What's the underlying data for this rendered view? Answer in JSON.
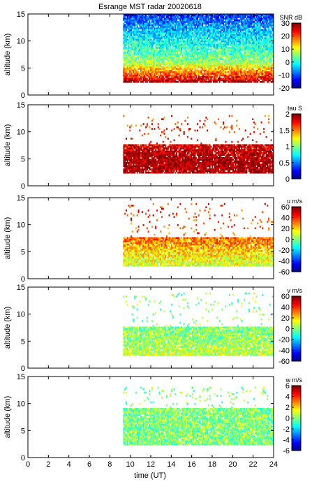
{
  "title": "Esrange MST radar 20020618",
  "xlabel": "time (UT)",
  "ylabel": "altitude (km)",
  "chart_data": [
    {
      "type": "heatmap",
      "title": "Esrange MST radar 20020618",
      "quantity": "SNR",
      "cbar_label": "SNR dB",
      "ylabel": "altitude (km)",
      "xlim": [
        0,
        24
      ],
      "ylim": [
        0,
        15
      ],
      "xticks": [
        0,
        2,
        4,
        6,
        8,
        10,
        12,
        14,
        16,
        18,
        20,
        22,
        24
      ],
      "yticks": [
        0,
        5,
        10,
        15
      ],
      "clim": [
        -20,
        30
      ],
      "cticks": [
        -20,
        -10,
        0,
        10,
        20,
        30
      ],
      "colormap": "jet",
      "data_time_range": [
        9.3,
        24
      ],
      "data_altitude_range": [
        2.3,
        15
      ],
      "altitude_profile": [
        [
          2.3,
          28
        ],
        [
          4,
          18
        ],
        [
          6,
          6
        ],
        [
          8,
          2
        ],
        [
          11,
          -3
        ],
        [
          15,
          -12
        ]
      ],
      "coverage_altitude_range": [
        2.3,
        15
      ]
    },
    {
      "type": "heatmap",
      "quantity": "tau",
      "cbar_label": "tau S",
      "ylabel": "altitude (km)",
      "xlim": [
        0,
        24
      ],
      "ylim": [
        0,
        15
      ],
      "xticks": [
        0,
        2,
        4,
        6,
        8,
        10,
        12,
        14,
        16,
        18,
        20,
        22,
        24
      ],
      "yticks": [
        0,
        5,
        10,
        15
      ],
      "clim": [
        0,
        2
      ],
      "cticks": [
        0,
        0.5,
        1,
        1.5,
        2
      ],
      "colormap": "jet",
      "data_time_range": [
        9.3,
        24
      ],
      "data_altitude_range": [
        2.3,
        13
      ],
      "altitude_profile": [
        [
          2.3,
          1.9
        ],
        [
          4,
          1.95
        ],
        [
          6,
          1.9
        ],
        [
          7.5,
          1.8
        ],
        [
          13,
          1.6
        ]
      ],
      "coverage_altitude_range": [
        2.3,
        7.5
      ]
    },
    {
      "type": "heatmap",
      "quantity": "u",
      "cbar_label": "u m/s",
      "ylabel": "altitude (km)",
      "xlim": [
        0,
        24
      ],
      "ylim": [
        0,
        15
      ],
      "xticks": [
        0,
        2,
        4,
        6,
        8,
        10,
        12,
        14,
        16,
        18,
        20,
        22,
        24
      ],
      "yticks": [
        0,
        5,
        10,
        15
      ],
      "clim": [
        -60,
        60
      ],
      "cticks": [
        -60,
        -40,
        -20,
        0,
        20,
        40,
        60
      ],
      "colormap": "jet",
      "data_time_range": [
        9.3,
        24
      ],
      "data_altitude_range": [
        2.3,
        14
      ],
      "altitude_profile": [
        [
          2.3,
          10
        ],
        [
          4,
          16
        ],
        [
          6,
          26
        ],
        [
          7.5,
          32
        ],
        [
          13,
          42
        ]
      ],
      "coverage_altitude_range": [
        2.3,
        7.5
      ]
    },
    {
      "type": "heatmap",
      "quantity": "v",
      "cbar_label": "v m/s",
      "ylabel": "altitude (km)",
      "xlim": [
        0,
        24
      ],
      "ylim": [
        0,
        15
      ],
      "xticks": [
        0,
        2,
        4,
        6,
        8,
        10,
        12,
        14,
        16,
        18,
        20,
        22,
        24
      ],
      "yticks": [
        0,
        5,
        10,
        15
      ],
      "clim": [
        -60,
        60
      ],
      "cticks": [
        -60,
        -40,
        -20,
        0,
        20,
        40,
        60
      ],
      "colormap": "jet",
      "data_time_range": [
        9.3,
        24
      ],
      "data_altitude_range": [
        2.3,
        14
      ],
      "altitude_profile": [
        [
          2.3,
          8
        ],
        [
          4,
          5
        ],
        [
          6,
          2
        ],
        [
          7.5,
          0
        ],
        [
          13,
          0
        ]
      ],
      "coverage_altitude_range": [
        2.3,
        7.5
      ]
    },
    {
      "type": "heatmap",
      "quantity": "w",
      "cbar_label": "w m/s",
      "ylabel": "altitude (km)",
      "xlabel": "time (UT)",
      "xlim": [
        0,
        24
      ],
      "ylim": [
        0,
        15
      ],
      "xticks": [
        0,
        2,
        4,
        6,
        8,
        10,
        12,
        14,
        16,
        18,
        20,
        22,
        24
      ],
      "yticks": [
        0,
        5,
        10,
        15
      ],
      "clim": [
        -6,
        6
      ],
      "cticks": [
        -6,
        -4,
        -2,
        0,
        2,
        4,
        6
      ],
      "colormap": "jet",
      "data_time_range": [
        9.3,
        24
      ],
      "data_altitude_range": [
        2.3,
        13
      ],
      "altitude_profile": [
        [
          2.3,
          0
        ],
        [
          6,
          0
        ],
        [
          10,
          0
        ],
        [
          13,
          0
        ]
      ],
      "coverage_altitude_range": [
        2.3,
        9
      ]
    }
  ]
}
